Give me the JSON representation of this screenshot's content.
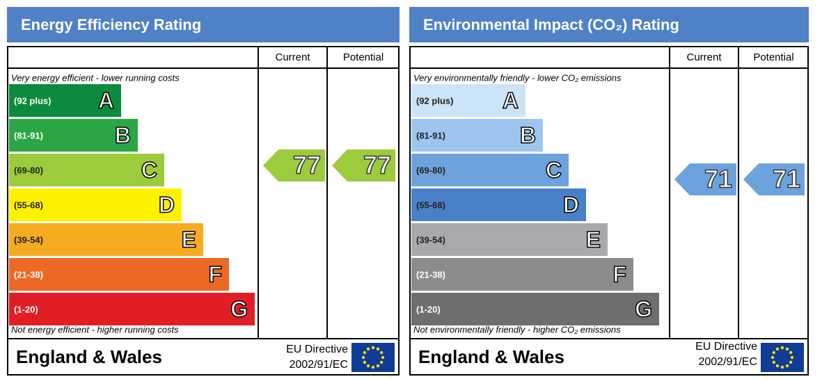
{
  "panels": [
    {
      "title": "Energy Efficiency Rating",
      "columns": [
        "Current",
        "Potential"
      ],
      "top_note": "Very energy efficient - lower running costs",
      "bottom_note": "Not energy efficient - higher running costs",
      "bands": [
        {
          "range": "(92 plus)",
          "letter": "A",
          "color": "#0c8a3e",
          "text_color": "#ffffff"
        },
        {
          "range": "(81-91)",
          "letter": "B",
          "color": "#2aa744",
          "text_color": "#ffffff"
        },
        {
          "range": "(69-80)",
          "letter": "C",
          "color": "#9ccb3b",
          "text_color": "#222222"
        },
        {
          "range": "(55-68)",
          "letter": "D",
          "color": "#fff200",
          "text_color": "#222222"
        },
        {
          "range": "(39-54)",
          "letter": "E",
          "color": "#f7ab20",
          "text_color": "#222222"
        },
        {
          "range": "(21-38)",
          "letter": "F",
          "color": "#ed6823",
          "text_color": "#ffffff"
        },
        {
          "range": "(1-20)",
          "letter": "G",
          "color": "#e11e26",
          "text_color": "#ffffff"
        }
      ],
      "current": 77,
      "potential": 77,
      "region": "England & Wales",
      "directive": [
        "EU Directive",
        "2002/91/EC"
      ]
    },
    {
      "title": "Environmental Impact (CO₂) Rating",
      "columns": [
        "Current",
        "Potential"
      ],
      "top_note": "Very environmentally friendly - lower CO₂ emissions",
      "bottom_note": "Not environmentally friendly - higher CO₂ emissions",
      "bands": [
        {
          "range": "(92 plus)",
          "letter": "A",
          "color": "#cce4f7",
          "text_color": "#222222"
        },
        {
          "range": "(81-91)",
          "letter": "B",
          "color": "#9ec5ee",
          "text_color": "#222222"
        },
        {
          "range": "(69-80)",
          "letter": "C",
          "color": "#6da3dd",
          "text_color": "#222222"
        },
        {
          "range": "(55-68)",
          "letter": "D",
          "color": "#4a80c8",
          "text_color": "#222222"
        },
        {
          "range": "(39-54)",
          "letter": "E",
          "color": "#a7a9ac",
          "text_color": "#222222"
        },
        {
          "range": "(21-38)",
          "letter": "F",
          "color": "#8a8c8e",
          "text_color": "#ffffff"
        },
        {
          "range": "(1-20)",
          "letter": "G",
          "color": "#6d6e70",
          "text_color": "#ffffff"
        }
      ],
      "current": 71,
      "potential": 71,
      "region": "England & Wales",
      "directive": [
        "EU Directive",
        "2002/91/EC"
      ]
    }
  ]
}
